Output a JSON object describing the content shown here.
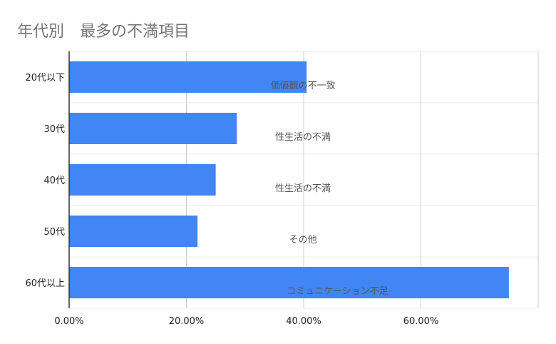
{
  "chart_data": {
    "type": "bar",
    "orientation": "horizontal",
    "title": "年代別　最多の不満項目",
    "categories": [
      "20代以下",
      "30代",
      "40代",
      "50代",
      "60代以上"
    ],
    "values": [
      0.405,
      0.286,
      0.25,
      0.219,
      0.75
    ],
    "data_labels": [
      "価値観の不一致",
      "性生活の不満",
      "性生活の不満",
      "その他",
      "コミュニケーション不足"
    ],
    "xlim": [
      0,
      0.8
    ],
    "x_ticks": [
      0,
      0.2,
      0.4,
      0.6
    ],
    "x_tick_labels": [
      "0.00%",
      "20.00%",
      "40.00%",
      "60.00%"
    ],
    "xlabel": "",
    "ylabel": "",
    "grid": true,
    "bar_color": "#4285f4"
  }
}
